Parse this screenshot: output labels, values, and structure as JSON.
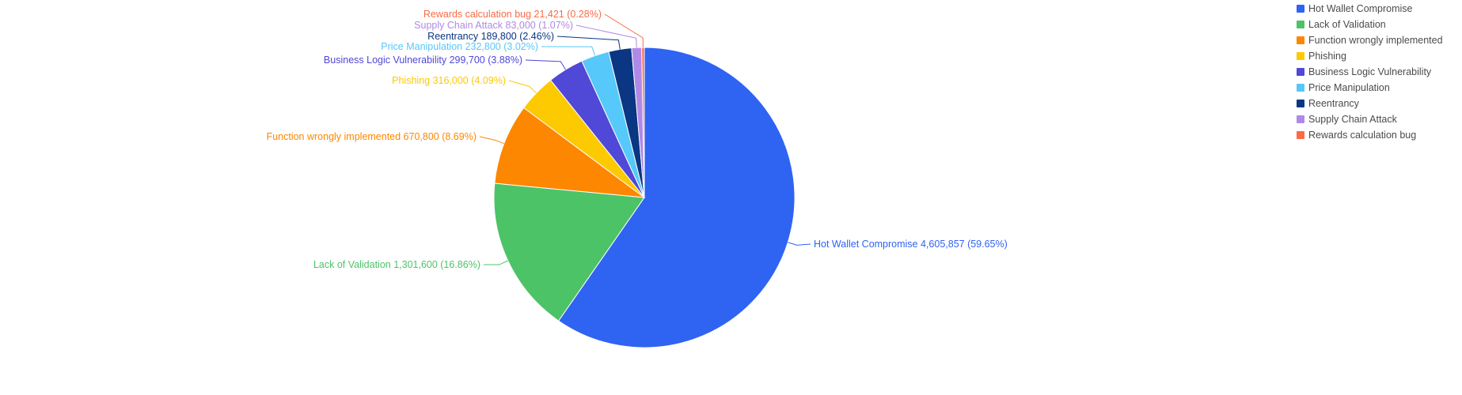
{
  "chart_data": {
    "type": "pie",
    "title": "",
    "legend_position": "top-right",
    "slices": [
      {
        "name": "Hot Wallet Compromise",
        "value": 4605857,
        "value_label": "4,605,857",
        "percent_label": "59.65%",
        "color": "#2f63f2"
      },
      {
        "name": "Lack of Validation",
        "value": 1301600,
        "value_label": "1,301,600",
        "percent_label": "16.86%",
        "color": "#4cc367"
      },
      {
        "name": "Function wrongly implemented",
        "value": 670800,
        "value_label": "670,800",
        "percent_label": "8.69%",
        "color": "#fd8700"
      },
      {
        "name": "Phishing",
        "value": 316000,
        "value_label": "316,000",
        "percent_label": "4.09%",
        "color": "#fdc900"
      },
      {
        "name": "Business Logic Vulnerability",
        "value": 299700,
        "value_label": "299,700",
        "percent_label": "3.88%",
        "color": "#5048d6"
      },
      {
        "name": "Price Manipulation",
        "value": 232800,
        "value_label": "232,800",
        "percent_label": "3.02%",
        "color": "#56c8f9"
      },
      {
        "name": "Reentrancy",
        "value": 189800,
        "value_label": "189,800",
        "percent_label": "2.46%",
        "color": "#0a3683"
      },
      {
        "name": "Supply Chain Attack",
        "value": 83000,
        "value_label": "83,000",
        "percent_label": "1.07%",
        "color": "#b089e8"
      },
      {
        "name": "Rewards calculation bug",
        "value": 21421,
        "value_label": "21,421",
        "percent_label": "0.28%",
        "color": "#fb6a45"
      }
    ]
  }
}
